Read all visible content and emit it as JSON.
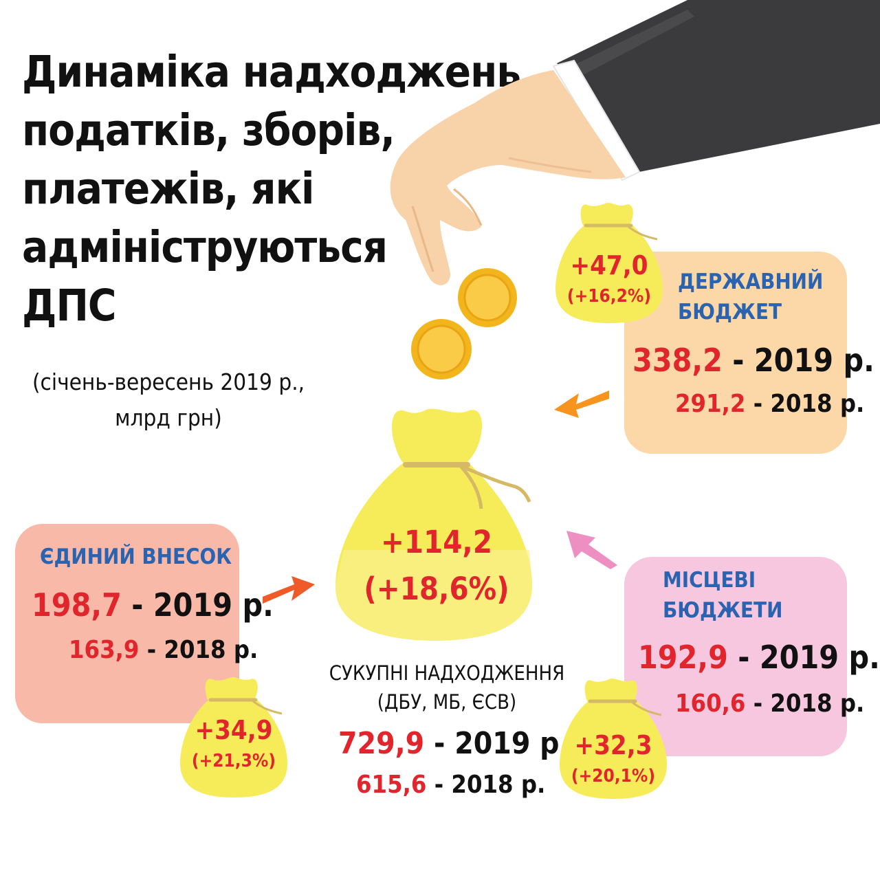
{
  "title": {
    "lines": [
      "Динаміка надходжень",
      "податків, зборів,",
      "платежів, які",
      "адмініструються",
      "ДПС"
    ],
    "subtitle_lines": [
      "(січень-вересень 2019 р.,",
      "млрд грн)"
    ]
  },
  "colors": {
    "red": "#e0262c",
    "blue_heading": "#2a63b0",
    "state_card": "#fcd8a8",
    "local_card": "#f7c7e0",
    "esv_card": "#f8b9a9",
    "bag_yellow": "#f6ec5a",
    "arrow_orange": "#f7941d",
    "arrow_red": "#f05a28",
    "arrow_pink": "#ee8fc2"
  },
  "icons": [
    "hand-icon",
    "coin-icon",
    "money-bag-icon",
    "arrow-icon"
  ],
  "total": {
    "bag_change": "+114,2",
    "bag_percent": "(+18,6%)",
    "label_lines": [
      "СУКУПНІ НАДХОДЖЕННЯ",
      "(ДБУ, МБ, ЄСВ)"
    ],
    "value_2019": "729,9",
    "value_2018": "615,6",
    "year_2019_text": " - 2019 р.",
    "year_2018_text": " - 2018 р."
  },
  "state_budget": {
    "title_lines": [
      "ДЕРЖАВНИЙ",
      "БЮДЖЕТ"
    ],
    "value_2019": "338,2",
    "value_2018": "291,2",
    "year_2019_text": " - 2019 р.",
    "year_2018_text": " - 2018 р.",
    "bag_change": "+47,0",
    "bag_percent": "(+16,2%)"
  },
  "local_budgets": {
    "title_lines": [
      "МІСЦЕВІ",
      "БЮДЖЕТИ"
    ],
    "value_2019": "192,9",
    "value_2018": "160,6",
    "year_2019_text": " - 2019 р.",
    "year_2018_text": " - 2018 р.",
    "bag_change": "+32,3",
    "bag_percent": "(+20,1%)"
  },
  "single_contribution": {
    "title": "ЄДИНИЙ ВНЕСОК",
    "value_2019": "198,7",
    "value_2018": "163,9",
    "year_2019_text": " - 2019 р.",
    "year_2018_text": " - 2018 р.",
    "bag_change": "+34,9",
    "bag_percent": "(+21,3%)"
  }
}
